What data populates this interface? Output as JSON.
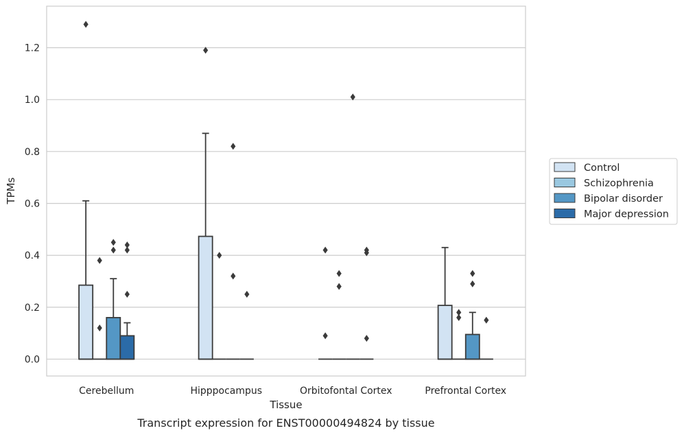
{
  "caption": "Transcript expression for ENST00000494824 by tissue",
  "chart_data": {
    "type": "box",
    "title": "",
    "xlabel": "Tissue",
    "ylabel": "TPMs",
    "ylim": [
      -0.065,
      1.36
    ],
    "yticks": [
      0.0,
      0.2,
      0.4,
      0.6,
      0.8,
      1.0,
      1.2
    ],
    "ytick_labels": [
      "0.0",
      "0.2",
      "0.4",
      "0.6",
      "0.8",
      "1.0",
      "1.2"
    ],
    "grid": "horizontal",
    "legend_position": "right",
    "categories": [
      "Cerebellum",
      "Hipppocampus",
      "Orbitofontal Cortex",
      "Prefrontal Cortex"
    ],
    "series": [
      {
        "name": "Control",
        "color": "#d2e3f3",
        "boxes": [
          {
            "q1": 0.0,
            "median": 0.0,
            "q3": 0.285,
            "whislo": 0.0,
            "whishi": 0.61,
            "fliers": [
              1.29
            ]
          },
          {
            "q1": 0.0,
            "median": 0.0,
            "q3": 0.473,
            "whislo": 0.0,
            "whishi": 0.87,
            "fliers": [
              1.19
            ]
          },
          {
            "q1": 0.0,
            "median": 0.0,
            "q3": 0.0,
            "whislo": 0.0,
            "whishi": 0.0,
            "fliers": [
              0.09,
              0.42
            ]
          },
          {
            "q1": 0.0,
            "median": 0.0,
            "q3": 0.207,
            "whislo": 0.0,
            "whishi": 0.43,
            "fliers": []
          }
        ]
      },
      {
        "name": "Schizophrenia",
        "color": "#9ac8e0",
        "boxes": [
          {
            "q1": 0.0,
            "median": 0.0,
            "q3": 0.0,
            "whislo": 0.0,
            "whishi": 0.0,
            "fliers": [
              0.12,
              0.38
            ]
          },
          {
            "q1": 0.0,
            "median": 0.0,
            "q3": 0.0,
            "whislo": 0.0,
            "whishi": 0.0,
            "fliers": [
              0.4
            ]
          },
          {
            "q1": 0.0,
            "median": 0.0,
            "q3": 0.0,
            "whislo": 0.0,
            "whishi": 0.0,
            "fliers": [
              0.28,
              0.33
            ]
          },
          {
            "q1": 0.0,
            "median": 0.0,
            "q3": 0.0,
            "whislo": 0.0,
            "whishi": 0.0,
            "fliers": [
              0.16,
              0.18
            ]
          }
        ]
      },
      {
        "name": "Bipolar disorder",
        "color": "#5497c5",
        "boxes": [
          {
            "q1": 0.0,
            "median": 0.0,
            "q3": 0.16,
            "whislo": 0.0,
            "whishi": 0.31,
            "fliers": [
              0.42,
              0.45
            ]
          },
          {
            "q1": 0.0,
            "median": 0.0,
            "q3": 0.0,
            "whislo": 0.0,
            "whishi": 0.0,
            "fliers": [
              0.32,
              0.82
            ]
          },
          {
            "q1": 0.0,
            "median": 0.0,
            "q3": 0.0,
            "whislo": 0.0,
            "whishi": 0.0,
            "fliers": [
              1.01
            ]
          },
          {
            "q1": 0.0,
            "median": 0.0,
            "q3": 0.095,
            "whislo": 0.0,
            "whishi": 0.18,
            "fliers": [
              0.29,
              0.33
            ]
          }
        ]
      },
      {
        "name": "Major depression",
        "color": "#2b6ba8",
        "boxes": [
          {
            "q1": 0.0,
            "median": 0.0,
            "q3": 0.09,
            "whislo": 0.0,
            "whishi": 0.14,
            "fliers": [
              0.25,
              0.42,
              0.44
            ]
          },
          {
            "q1": 0.0,
            "median": 0.0,
            "q3": 0.0,
            "whislo": 0.0,
            "whishi": 0.0,
            "fliers": [
              0.25
            ]
          },
          {
            "q1": 0.0,
            "median": 0.0,
            "q3": 0.0,
            "whislo": 0.0,
            "whishi": 0.0,
            "fliers": [
              0.08,
              0.41,
              0.42
            ]
          },
          {
            "q1": 0.0,
            "median": 0.0,
            "q3": 0.0,
            "whislo": 0.0,
            "whishi": 0.0,
            "fliers": [
              0.15
            ]
          }
        ]
      }
    ]
  }
}
